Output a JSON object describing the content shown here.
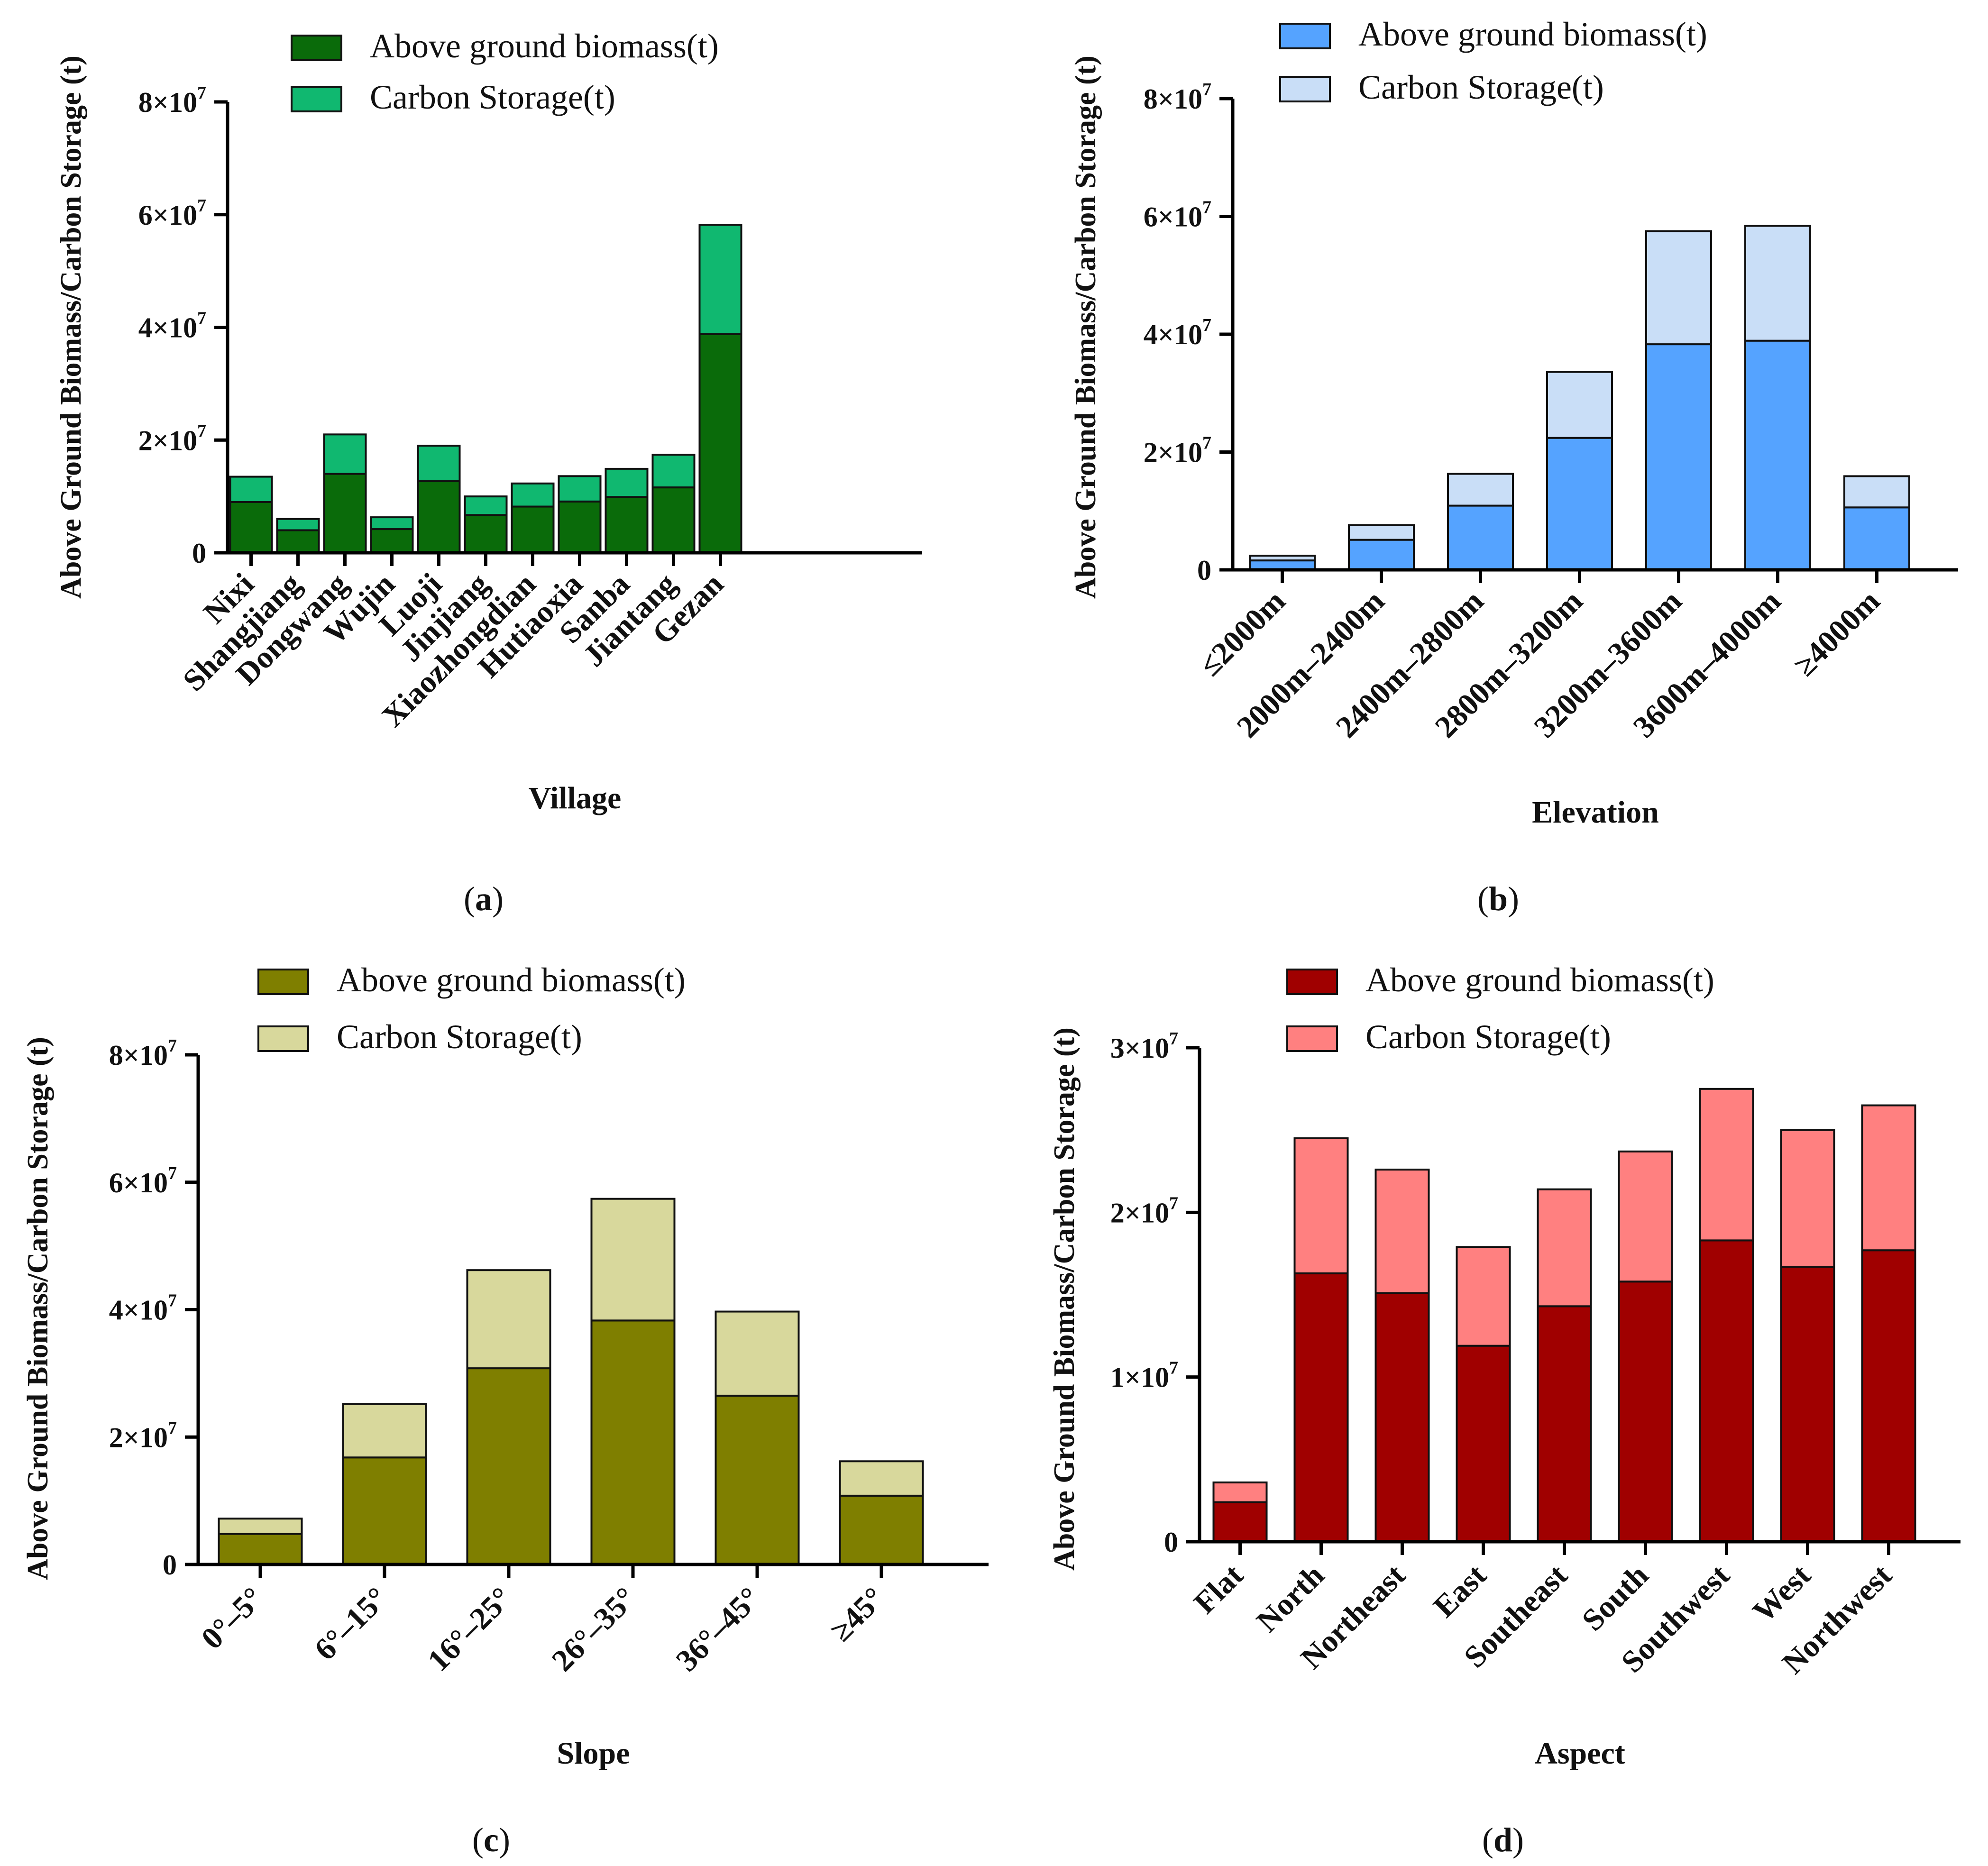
{
  "figure": {
    "panels": [
      {
        "label_open": "(",
        "label_letter": "a",
        "label_close": ")"
      },
      {
        "label_open": "(",
        "label_letter": "b",
        "label_close": ")"
      },
      {
        "label_open": "(",
        "label_letter": "c",
        "label_close": ")"
      },
      {
        "label_open": "(",
        "label_letter": "d",
        "label_close": ")"
      }
    ]
  },
  "chart_data": [
    {
      "type": "bar",
      "stacked": true,
      "title": "",
      "xlabel": "Village",
      "ylabel": "Above Ground Biomass/Carbon Storage (t)",
      "ylim": [
        0,
        80000000
      ],
      "yticks": [
        0,
        20000000,
        40000000,
        60000000,
        80000000
      ],
      "ytick_labels": [
        "0",
        "2×10⁷",
        "4×10⁷",
        "6×10⁷",
        "8×10⁷"
      ],
      "categories": [
        "Nixi",
        "Shangjiang",
        "Dongwang",
        "Wujin",
        "Luoji",
        "Jinjiang",
        "Xiaozhongdian",
        "Hutiaoxia",
        "Sanba",
        "Jiantang",
        "Gezan"
      ],
      "series": [
        {
          "name": "Above ground biomass(t)",
          "color": "#0a6b0a",
          "values": [
            9000000,
            4000000,
            14000000,
            4200000,
            12700000,
            6700000,
            8200000,
            9100000,
            9900000,
            11600000,
            38800000
          ]
        },
        {
          "name": "Carbon Storage(t)",
          "color": "#10b870",
          "values": [
            4500000,
            2000000,
            7000000,
            2100000,
            6300000,
            3300000,
            4100000,
            4500000,
            5000000,
            5800000,
            19400000
          ]
        }
      ],
      "legend": "top"
    },
    {
      "type": "bar",
      "stacked": true,
      "title": "",
      "xlabel": "Elevation",
      "ylabel": "Above Ground Biomass/Carbon Storage (t)",
      "ylim": [
        0,
        80000000
      ],
      "yticks": [
        0,
        20000000,
        40000000,
        60000000,
        80000000
      ],
      "ytick_labels": [
        "0",
        "2×10⁷",
        "4×10⁷",
        "6×10⁷",
        "8×10⁷"
      ],
      "categories": [
        "≤2000m",
        "2000m–2400m",
        "2400m–2800m",
        "2800m–3200m",
        "3200m–3600m",
        "3600m–4000m",
        "≥4000m"
      ],
      "series": [
        {
          "name": "Above ground biomass(t)",
          "color": "#55a3ff",
          "values": [
            1600000,
            5100000,
            10900000,
            22400000,
            38300000,
            38900000,
            10600000
          ]
        },
        {
          "name": "Carbon Storage(t)",
          "color": "#c9def7",
          "values": [
            800000,
            2500000,
            5400000,
            11200000,
            19200000,
            19500000,
            5300000
          ]
        }
      ],
      "legend": "top"
    },
    {
      "type": "bar",
      "stacked": true,
      "title": "",
      "xlabel": "Slope",
      "ylabel": "Above Ground Biomass/Carbon Storage (t)",
      "ylim": [
        0,
        80000000
      ],
      "yticks": [
        0,
        20000000,
        40000000,
        60000000,
        80000000
      ],
      "ytick_labels": [
        "0",
        "2×10⁷",
        "4×10⁷",
        "6×10⁷",
        "8×10⁷"
      ],
      "categories": [
        "0°–5°",
        "6°–15°",
        "16°–25°",
        "26°–35°",
        "36°–45°",
        "≥45°"
      ],
      "series": [
        {
          "name": "Above ground biomass(t)",
          "color": "#7f7f00",
          "values": [
            4800000,
            16800000,
            30800000,
            38300000,
            26500000,
            10800000
          ]
        },
        {
          "name": "Carbon Storage(t)",
          "color": "#d8d89c",
          "values": [
            2400000,
            8400000,
            15400000,
            19100000,
            13200000,
            5400000
          ]
        }
      ],
      "legend": "top"
    },
    {
      "type": "bar",
      "stacked": true,
      "title": "",
      "xlabel": "Aspect",
      "ylabel": "Above Ground Biomass/Carbon Storage (t)",
      "ylim": [
        0,
        30000000
      ],
      "yticks": [
        0,
        10000000,
        20000000,
        30000000
      ],
      "ytick_labels": [
        "0",
        "1×10⁷",
        "2×10⁷",
        "3×10⁷"
      ],
      "categories": [
        "Flat",
        "North",
        "Northeast",
        "East",
        "Southeast",
        "South",
        "Southwest",
        "West",
        "Northwest"
      ],
      "series": [
        {
          "name": "Above ground biomass(t)",
          "color": "#a00000",
          "values": [
            2400000,
            16300000,
            15100000,
            11900000,
            14300000,
            15800000,
            18300000,
            16700000,
            17700000
          ]
        },
        {
          "name": "Carbon Storage(t)",
          "color": "#ff8080",
          "values": [
            1200000,
            8200000,
            7500000,
            6000000,
            7100000,
            7900000,
            9200000,
            8300000,
            8800000
          ]
        }
      ],
      "legend": "top"
    }
  ]
}
